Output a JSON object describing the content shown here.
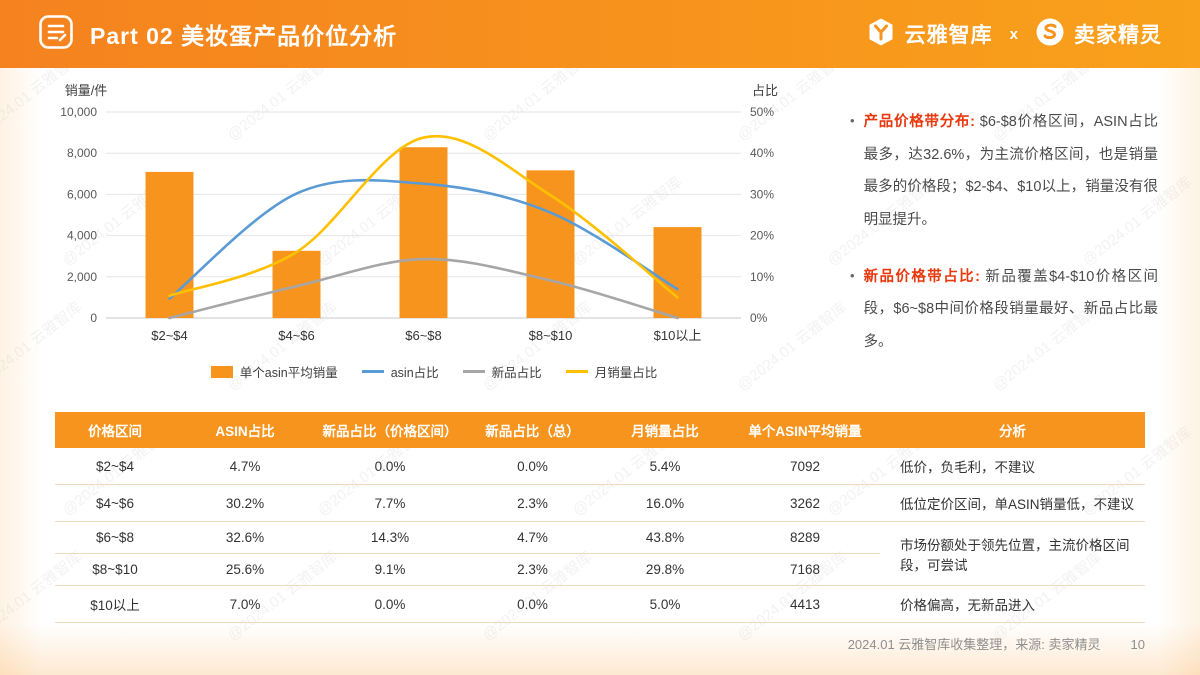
{
  "page": {
    "accent": "#F7941E",
    "bullet": "•",
    "watermark": "@2024.01 云雅智库"
  },
  "header": {
    "title": "Part 02 美妆蛋产品价位分析",
    "brand_left": "云雅智库",
    "separator": "x",
    "brand_right": "卖家精灵"
  },
  "chart_data": {
    "type": "bar+line combo",
    "categories": [
      "$2~$4",
      "$4~$6",
      "$6~$8",
      "$8~$10",
      "$10以上"
    ],
    "bar_series": {
      "name": "单个asin平均销量",
      "color": "#F7941E",
      "axis": "left",
      "values": [
        7092,
        3262,
        8289,
        7168,
        4413
      ]
    },
    "line_series": [
      {
        "name": "asin占比",
        "color": "#5B9BD5",
        "values": [
          4.7,
          30.2,
          32.6,
          25.6,
          7.0
        ]
      },
      {
        "name": "新品占比",
        "color": "#A6A6A6",
        "values": [
          0.0,
          7.7,
          14.3,
          9.1,
          0.0
        ]
      },
      {
        "name": "月销量占比",
        "color": "#FFC000",
        "values": [
          5.4,
          16.0,
          43.8,
          29.8,
          5.0
        ]
      }
    ],
    "left_axis": {
      "label": "销量/件",
      "min": 0,
      "max": 10000,
      "step": 2000
    },
    "right_axis": {
      "label": "占比",
      "min": 0,
      "max": 50,
      "step": 10,
      "suffix": "%"
    },
    "grid": true,
    "legend_position": "bottom"
  },
  "insights": [
    {
      "title": "产品价格带分布: ",
      "text": "$6-$8价格区间，ASIN占比最多，达32.6%，为主流价格区间，也是销量最多的价格段；$2-$4、$10以上，销量没有很明显提升。"
    },
    {
      "title": "新品价格带占比: ",
      "text": "新品覆盖$4-$10价格区间段，$6~$8中间价格段销量最好、新品占比最多。"
    }
  ],
  "table": {
    "headers": [
      "价格区间",
      "ASIN占比",
      "新品占比（价格区间）",
      "新品占比（总）",
      "月销量占比",
      "单个ASIN平均销量",
      "分析"
    ],
    "rows": [
      {
        "cells": [
          "$2~$4",
          "4.7%",
          "0.0%",
          "0.0%",
          "5.4%",
          "7092"
        ],
        "analysis": {
          "text": "低价，负毛利，不建议",
          "rowspan": 1
        }
      },
      {
        "cells": [
          "$4~$6",
          "30.2%",
          "7.7%",
          "2.3%",
          "16.0%",
          "3262"
        ],
        "analysis": {
          "text": "低位定价区间，单ASIN销量低，不建议",
          "rowspan": 1
        }
      },
      {
        "cells": [
          "$6~$8",
          "32.6%",
          "14.3%",
          "4.7%",
          "43.8%",
          "8289"
        ],
        "analysis": {
          "text": "市场份额处于领先位置，主流价格区间段，可尝试",
          "rowspan": 2
        }
      },
      {
        "cells": [
          "$8~$10",
          "25.6%",
          "9.1%",
          "2.3%",
          "29.8%",
          "7168"
        ],
        "analysis": null
      },
      {
        "cells": [
          "$10以上",
          "7.0%",
          "0.0%",
          "0.0%",
          "5.0%",
          "4413"
        ],
        "analysis": {
          "text": "价格偏高，无新品进入",
          "rowspan": 1
        }
      }
    ]
  },
  "footer": {
    "text": "2024.01 云雅智库收集整理，来源: 卖家精灵",
    "page": "10"
  }
}
